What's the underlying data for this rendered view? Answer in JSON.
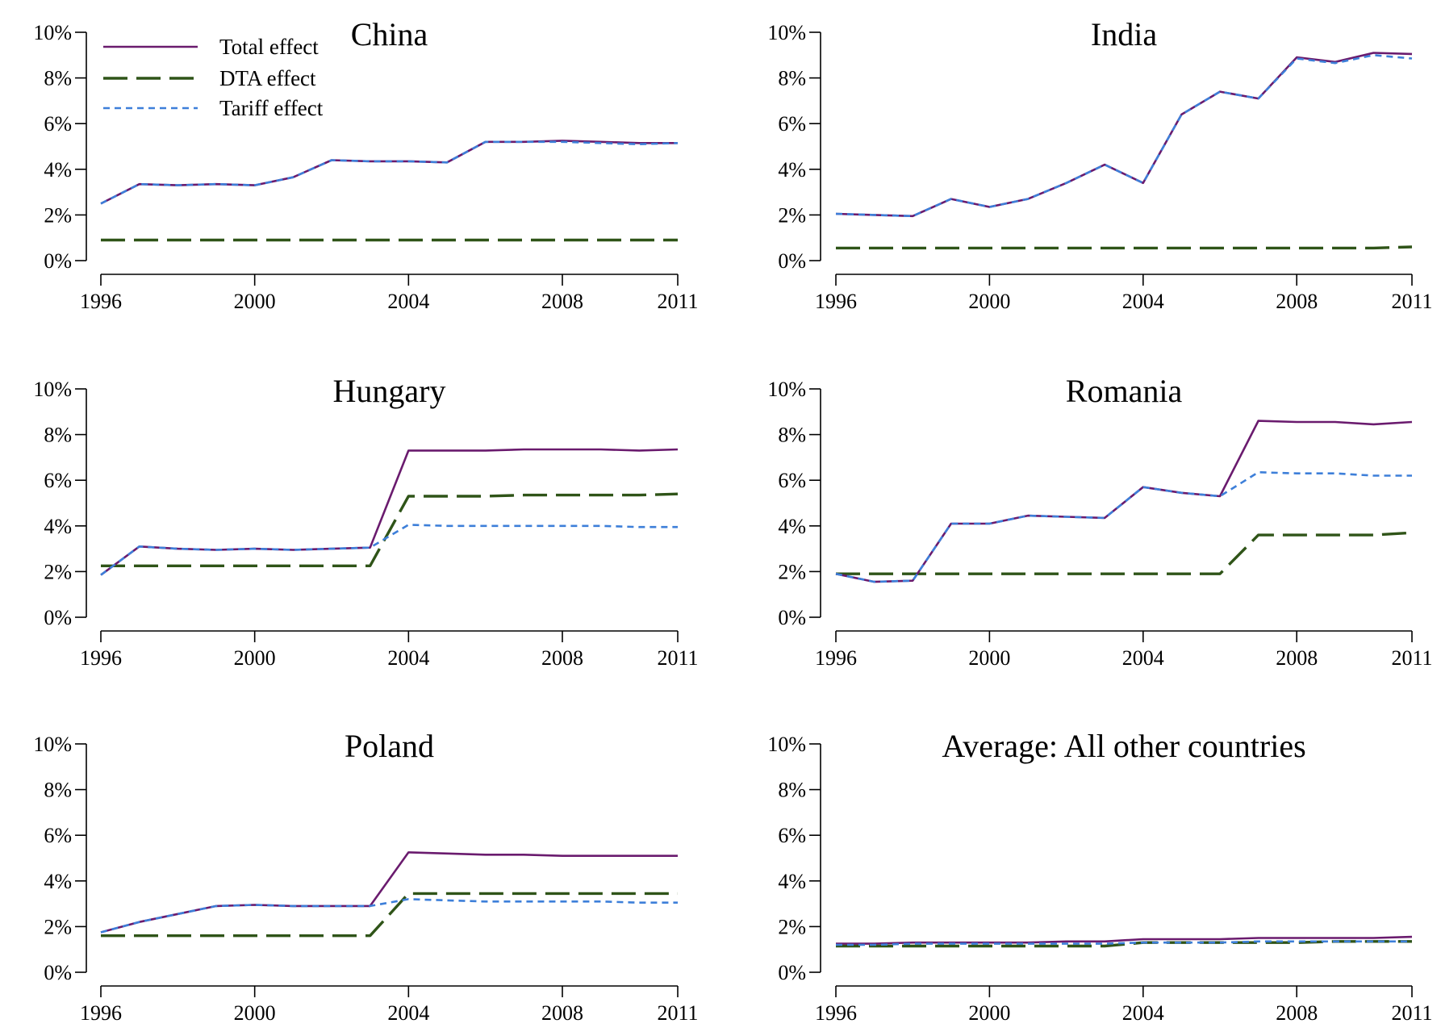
{
  "colors": {
    "total": "#6a1b6e",
    "dta": "#2f5418",
    "tariff": "#3d7fd9"
  },
  "legend": {
    "items": [
      {
        "key": "total",
        "label": "Total effect"
      },
      {
        "key": "dta",
        "label": "DTA effect"
      },
      {
        "key": "tariff",
        "label": "Tariff effect"
      }
    ],
    "placement": "top-left of first panel"
  },
  "chart_data": [
    {
      "type": "line",
      "title": "China",
      "xlim": [
        1996,
        2011
      ],
      "ylim": [
        0,
        10
      ],
      "x_ticks": [
        "1996",
        "2000",
        "2004",
        "2008",
        "2011"
      ],
      "y_ticks": [
        "0%",
        "2%",
        "4%",
        "6%",
        "8%",
        "10%"
      ],
      "x": [
        1996,
        1997,
        1998,
        1999,
        2000,
        2001,
        2002,
        2003,
        2004,
        2005,
        2006,
        2007,
        2008,
        2009,
        2010,
        2011
      ],
      "series": [
        {
          "name": "Total effect",
          "key": "total",
          "values": [
            2.5,
            3.35,
            3.3,
            3.35,
            3.3,
            3.65,
            4.4,
            4.35,
            4.35,
            4.3,
            5.2,
            5.2,
            5.25,
            5.2,
            5.15,
            5.15
          ]
        },
        {
          "name": "DTA effect",
          "key": "dta",
          "values": [
            0.9,
            0.9,
            0.9,
            0.9,
            0.9,
            0.9,
            0.9,
            0.9,
            0.9,
            0.9,
            0.9,
            0.9,
            0.9,
            0.9,
            0.9,
            0.9
          ]
        },
        {
          "name": "Tariff effect",
          "key": "tariff",
          "values": [
            2.5,
            3.35,
            3.3,
            3.35,
            3.3,
            3.65,
            4.4,
            4.35,
            4.35,
            4.3,
            5.2,
            5.2,
            5.2,
            5.15,
            5.1,
            5.15
          ]
        }
      ]
    },
    {
      "type": "line",
      "title": "India",
      "xlim": [
        1996,
        2011
      ],
      "ylim": [
        0,
        10
      ],
      "x_ticks": [
        "1996",
        "2000",
        "2004",
        "2008",
        "2011"
      ],
      "y_ticks": [
        "0%",
        "2%",
        "4%",
        "6%",
        "8%",
        "10%"
      ],
      "x": [
        1996,
        1997,
        1998,
        1999,
        2000,
        2001,
        2002,
        2003,
        2004,
        2005,
        2006,
        2007,
        2008,
        2009,
        2010,
        2011
      ],
      "series": [
        {
          "name": "Total effect",
          "key": "total",
          "values": [
            2.05,
            2.0,
            1.95,
            2.7,
            2.35,
            2.7,
            3.4,
            4.2,
            3.4,
            6.4,
            7.4,
            7.1,
            8.9,
            8.7,
            9.1,
            9.05
          ]
        },
        {
          "name": "DTA effect",
          "key": "dta",
          "values": [
            0.55,
            0.55,
            0.55,
            0.55,
            0.55,
            0.55,
            0.55,
            0.55,
            0.55,
            0.55,
            0.55,
            0.55,
            0.55,
            0.55,
            0.55,
            0.6
          ]
        },
        {
          "name": "Tariff effect",
          "key": "tariff",
          "values": [
            2.05,
            2.0,
            1.95,
            2.7,
            2.35,
            2.7,
            3.4,
            4.2,
            3.4,
            6.4,
            7.4,
            7.1,
            8.85,
            8.65,
            9.0,
            8.85
          ]
        }
      ]
    },
    {
      "type": "line",
      "title": "Hungary",
      "xlim": [
        1996,
        2011
      ],
      "ylim": [
        0,
        10
      ],
      "x_ticks": [
        "1996",
        "2000",
        "2004",
        "2008",
        "2011"
      ],
      "y_ticks": [
        "0%",
        "2%",
        "4%",
        "6%",
        "8%",
        "10%"
      ],
      "x": [
        1996,
        1997,
        1998,
        1999,
        2000,
        2001,
        2002,
        2003,
        2004,
        2005,
        2006,
        2007,
        2008,
        2009,
        2010,
        2011
      ],
      "series": [
        {
          "name": "Total effect",
          "key": "total",
          "values": [
            1.85,
            3.1,
            3.0,
            2.95,
            3.0,
            2.95,
            3.0,
            3.05,
            7.3,
            7.3,
            7.3,
            7.35,
            7.35,
            7.35,
            7.3,
            7.35
          ]
        },
        {
          "name": "DTA effect",
          "key": "dta",
          "values": [
            2.25,
            2.25,
            2.25,
            2.25,
            2.25,
            2.25,
            2.25,
            2.25,
            5.3,
            5.3,
            5.3,
            5.35,
            5.35,
            5.35,
            5.35,
            5.4
          ]
        },
        {
          "name": "Tariff effect",
          "key": "tariff",
          "values": [
            1.85,
            3.1,
            3.0,
            2.95,
            3.0,
            2.95,
            3.0,
            3.05,
            4.05,
            4.0,
            4.0,
            4.0,
            4.0,
            4.0,
            3.95,
            3.95
          ]
        }
      ]
    },
    {
      "type": "line",
      "title": "Romania",
      "xlim": [
        1996,
        2011
      ],
      "ylim": [
        0,
        10
      ],
      "x_ticks": [
        "1996",
        "2000",
        "2004",
        "2008",
        "2011"
      ],
      "y_ticks": [
        "0%",
        "2%",
        "4%",
        "6%",
        "8%",
        "10%"
      ],
      "x": [
        1996,
        1997,
        1998,
        1999,
        2000,
        2001,
        2002,
        2003,
        2004,
        2005,
        2006,
        2007,
        2008,
        2009,
        2010,
        2011
      ],
      "series": [
        {
          "name": "Total effect",
          "key": "total",
          "values": [
            1.9,
            1.55,
            1.6,
            4.1,
            4.1,
            4.45,
            4.4,
            4.35,
            5.7,
            5.45,
            5.3,
            8.6,
            8.55,
            8.55,
            8.45,
            8.55
          ]
        },
        {
          "name": "DTA effect",
          "key": "dta",
          "values": [
            1.9,
            1.9,
            1.9,
            1.9,
            1.9,
            1.9,
            1.9,
            1.9,
            1.9,
            1.9,
            1.9,
            3.6,
            3.6,
            3.6,
            3.6,
            3.7
          ]
        },
        {
          "name": "Tariff effect",
          "key": "tariff",
          "values": [
            1.9,
            1.55,
            1.6,
            4.1,
            4.1,
            4.45,
            4.4,
            4.35,
            5.7,
            5.45,
            5.3,
            6.35,
            6.3,
            6.3,
            6.2,
            6.2
          ]
        }
      ]
    },
    {
      "type": "line",
      "title": "Poland",
      "xlim": [
        1996,
        2011
      ],
      "ylim": [
        0,
        10
      ],
      "x_ticks": [
        "1996",
        "2000",
        "2004",
        "2008",
        "2011"
      ],
      "y_ticks": [
        "0%",
        "2%",
        "4%",
        "6%",
        "8%",
        "10%"
      ],
      "x": [
        1996,
        1997,
        1998,
        1999,
        2000,
        2001,
        2002,
        2003,
        2004,
        2005,
        2006,
        2007,
        2008,
        2009,
        2010,
        2011
      ],
      "series": [
        {
          "name": "Total effect",
          "key": "total",
          "values": [
            1.75,
            2.2,
            2.55,
            2.9,
            2.95,
            2.9,
            2.9,
            2.9,
            5.25,
            5.2,
            5.15,
            5.15,
            5.1,
            5.1,
            5.1,
            5.1
          ]
        },
        {
          "name": "DTA effect",
          "key": "dta",
          "values": [
            1.6,
            1.6,
            1.6,
            1.6,
            1.6,
            1.6,
            1.6,
            1.6,
            3.45,
            3.45,
            3.45,
            3.45,
            3.45,
            3.45,
            3.45,
            3.45
          ]
        },
        {
          "name": "Tariff effect",
          "key": "tariff",
          "values": [
            1.75,
            2.2,
            2.55,
            2.9,
            2.95,
            2.9,
            2.9,
            2.9,
            3.2,
            3.15,
            3.1,
            3.1,
            3.1,
            3.1,
            3.05,
            3.05
          ]
        }
      ]
    },
    {
      "type": "line",
      "title": "Average: All other countries",
      "xlim": [
        1996,
        2011
      ],
      "ylim": [
        0,
        10
      ],
      "x_ticks": [
        "1996",
        "2000",
        "2004",
        "2008",
        "2011"
      ],
      "y_ticks": [
        "0%",
        "2%",
        "4%",
        "6%",
        "8%",
        "10%"
      ],
      "x": [
        1996,
        1997,
        1998,
        1999,
        2000,
        2001,
        2002,
        2003,
        2004,
        2005,
        2006,
        2007,
        2008,
        2009,
        2010,
        2011
      ],
      "series": [
        {
          "name": "Total effect",
          "key": "total",
          "values": [
            1.25,
            1.25,
            1.3,
            1.3,
            1.3,
            1.3,
            1.35,
            1.35,
            1.45,
            1.45,
            1.45,
            1.5,
            1.5,
            1.5,
            1.5,
            1.55
          ]
        },
        {
          "name": "DTA effect",
          "key": "dta",
          "values": [
            1.15,
            1.15,
            1.15,
            1.15,
            1.15,
            1.15,
            1.15,
            1.15,
            1.3,
            1.3,
            1.3,
            1.3,
            1.3,
            1.35,
            1.35,
            1.35
          ]
        },
        {
          "name": "Tariff effect",
          "key": "tariff",
          "values": [
            1.2,
            1.2,
            1.25,
            1.25,
            1.25,
            1.25,
            1.25,
            1.25,
            1.3,
            1.3,
            1.3,
            1.35,
            1.35,
            1.35,
            1.35,
            1.35
          ]
        }
      ]
    }
  ]
}
